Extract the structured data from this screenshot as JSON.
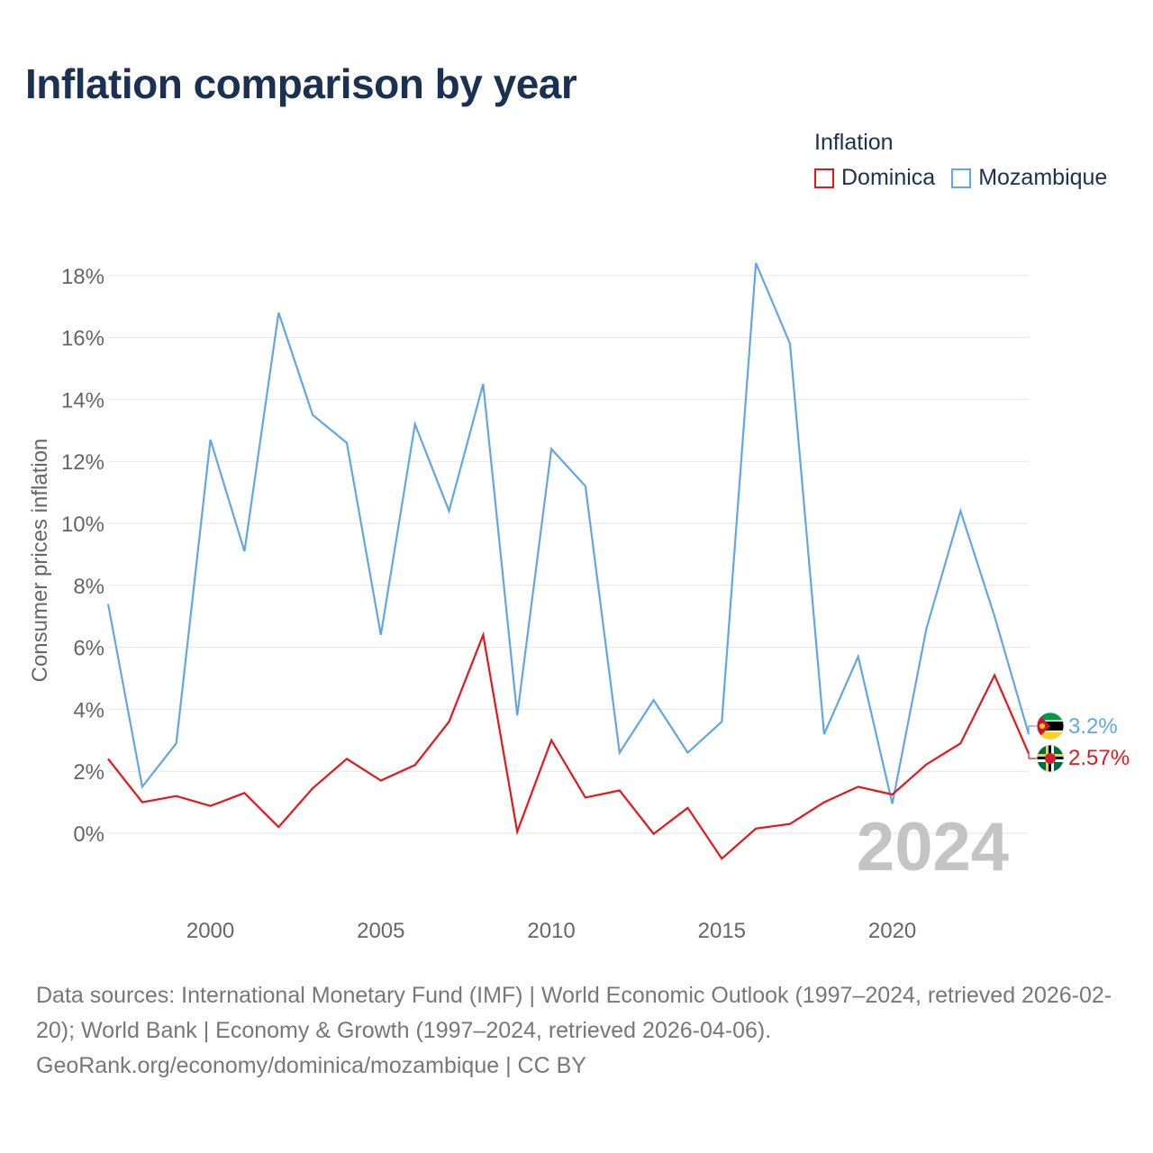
{
  "title": "Inflation comparison by year",
  "legend": {
    "title": "Inflation",
    "items": [
      {
        "label": "Dominica",
        "color": "#e8161b"
      },
      {
        "label": "Mozambique",
        "color": "#62a7e3"
      }
    ]
  },
  "source": {
    "line1": "Data sources: International Monetary Fund (IMF) | World Economic Outlook (1997–2024, retrieved 2026-02-20); World Bank | Economy & Growth (1997–2024, retrieved 2026-04-06).",
    "line2": "GeoRank.org/economy/dominica/mozambique | CC BY"
  },
  "chart_data": {
    "type": "line",
    "title": "Inflation comparison by year",
    "xlabel": "",
    "ylabel": "Consumer prices inflation",
    "xlim": [
      1997,
      2024
    ],
    "ylim": [
      -2,
      18.6
    ],
    "grid": true,
    "x_ticks": [
      2000,
      2005,
      2010,
      2015,
      2020
    ],
    "x_tick_labels": [
      "2000",
      "2005",
      "2010",
      "2015",
      "2020"
    ],
    "y_ticks": [
      0,
      2,
      4,
      6,
      8,
      10,
      12,
      14,
      16,
      18
    ],
    "y_tick_labels": [
      "0%",
      "2%",
      "4%",
      "6%",
      "8%",
      "10%",
      "12%",
      "14%",
      "16%",
      "18%"
    ],
    "year_watermark": "2024",
    "x": [
      1997,
      1998,
      1999,
      2000,
      2001,
      2002,
      2003,
      2004,
      2005,
      2006,
      2007,
      2008,
      2009,
      2010,
      2011,
      2012,
      2013,
      2014,
      2015,
      2016,
      2017,
      2018,
      2019,
      2020,
      2021,
      2022,
      2023,
      2024
    ],
    "series": [
      {
        "name": "Mozambique",
        "color": "#62a7e3",
        "values": [
          7.4,
          1.5,
          2.9,
          12.7,
          9.1,
          16.8,
          13.5,
          12.6,
          6.4,
          13.2,
          10.4,
          14.5,
          3.8,
          12.4,
          11.2,
          2.6,
          4.3,
          2.6,
          3.6,
          18.4,
          15.8,
          3.2,
          5.7,
          0.95,
          6.6,
          10.4,
          7.0,
          3.2
        ],
        "end_label": "3.2%",
        "flag": "mozambique"
      },
      {
        "name": "Dominica",
        "color": "#e8161b",
        "values": [
          2.4,
          1.0,
          1.2,
          0.88,
          1.3,
          0.2,
          1.45,
          2.4,
          1.7,
          2.2,
          3.6,
          6.4,
          0.05,
          3.0,
          1.15,
          1.38,
          -0.02,
          0.82,
          -0.82,
          0.15,
          0.3,
          1.0,
          1.5,
          1.25,
          2.22,
          2.9,
          5.1,
          2.57
        ],
        "end_label": "2.57%",
        "flag": "dominica"
      }
    ]
  }
}
